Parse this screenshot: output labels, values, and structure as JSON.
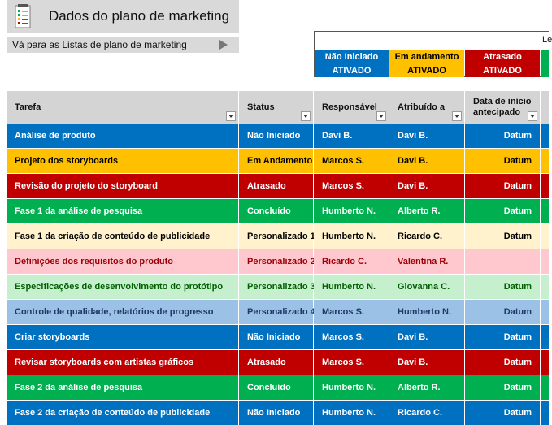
{
  "header": {
    "title": "Dados do plano de marketing",
    "nav_link": "Vá para as Listas de plano de marketing"
  },
  "legend": {
    "title": "Le",
    "statuses": [
      {
        "label": "Não Iniciado",
        "flag": "ATIVADO",
        "bg": "#0070c0",
        "fg": "#ffffff"
      },
      {
        "label": "Em andamento",
        "flag": "ATIVADO",
        "bg": "#ffc000",
        "fg": "#000000"
      },
      {
        "label": "Atrasado",
        "flag": "ATIVADO",
        "bg": "#c00000",
        "fg": "#ffffff"
      },
      {
        "label": "",
        "flag": "",
        "bg": "#00b050",
        "fg": "#ffffff"
      }
    ]
  },
  "table": {
    "columns": [
      "Tarefa",
      "Status",
      "Responsável",
      "Atribuído a",
      "Data de início antecipado"
    ],
    "rows": [
      {
        "task": "Análise de produto",
        "status": "Não Iniciado",
        "owner": "Davi B.",
        "assigned": "Davi B.",
        "date": "Datum",
        "bg": "#0070c0",
        "fg": "#ffffff"
      },
      {
        "task": "Projeto dos storyboards",
        "status": "Em Andamento",
        "owner": "Marcos S.",
        "assigned": "Davi B.",
        "date": "Datum",
        "bg": "#ffc000",
        "fg": "#000000"
      },
      {
        "task": "Revisão do projeto do storyboard",
        "status": "Atrasado",
        "owner": "Marcos S.",
        "assigned": "Davi B.",
        "date": "Datum",
        "bg": "#c00000",
        "fg": "#ffffff"
      },
      {
        "task": "Fase 1 da análise de pesquisa",
        "status": "Concluído",
        "owner": "Humberto N.",
        "assigned": "Alberto R.",
        "date": "Datum",
        "bg": "#00b050",
        "fg": "#ffffff"
      },
      {
        "task": "Fase 1 da criação de conteúdo de publicidade",
        "status": "Personalizado 1",
        "owner": "Humberto N.",
        "assigned": "Ricardo C.",
        "date": "Datum",
        "bg": "#fff2cc",
        "fg": "#000000"
      },
      {
        "task": "Definições dos requisitos do produto",
        "status": "Personalizado 2",
        "owner": "Ricardo C.",
        "assigned": "Valentina R.",
        "date": "",
        "bg": "#ffc7ce",
        "fg": "#9c0006"
      },
      {
        "task": "Especificações de desenvolvimento do protótipo",
        "status": "Personalizado 3",
        "owner": "Humberto N.",
        "assigned": "Giovanna C.",
        "date": "Datum",
        "bg": "#c6efce",
        "fg": "#006100"
      },
      {
        "task": "Controle de qualidade, relatórios de progresso",
        "status": "Personalizado 4",
        "owner": "Marcos S.",
        "assigned": "Humberto N.",
        "date": "Datum",
        "bg": "#9bc2e6",
        "fg": "#1f3864"
      },
      {
        "task": "Criar storyboards",
        "status": "Não Iniciado",
        "owner": "Marcos S.",
        "assigned": "Davi B.",
        "date": "Datum",
        "bg": "#0070c0",
        "fg": "#ffffff"
      },
      {
        "task": "Revisar storyboards com artistas gráficos",
        "status": "Atrasado",
        "owner": "Marcos S.",
        "assigned": "Davi B.",
        "date": "Datum",
        "bg": "#c00000",
        "fg": "#ffffff"
      },
      {
        "task": "Fase 2 da análise de pesquisa",
        "status": "Concluído",
        "owner": "Humberto N.",
        "assigned": "Alberto R.",
        "date": "Datum",
        "bg": "#00b050",
        "fg": "#ffffff"
      },
      {
        "task": "Fase 2 da criação de conteúdo de publicidade",
        "status": "Não Iniciado",
        "owner": "Humberto N.",
        "assigned": "Ricardo C.",
        "date": "Datum",
        "bg": "#0070c0",
        "fg": "#ffffff"
      }
    ]
  }
}
